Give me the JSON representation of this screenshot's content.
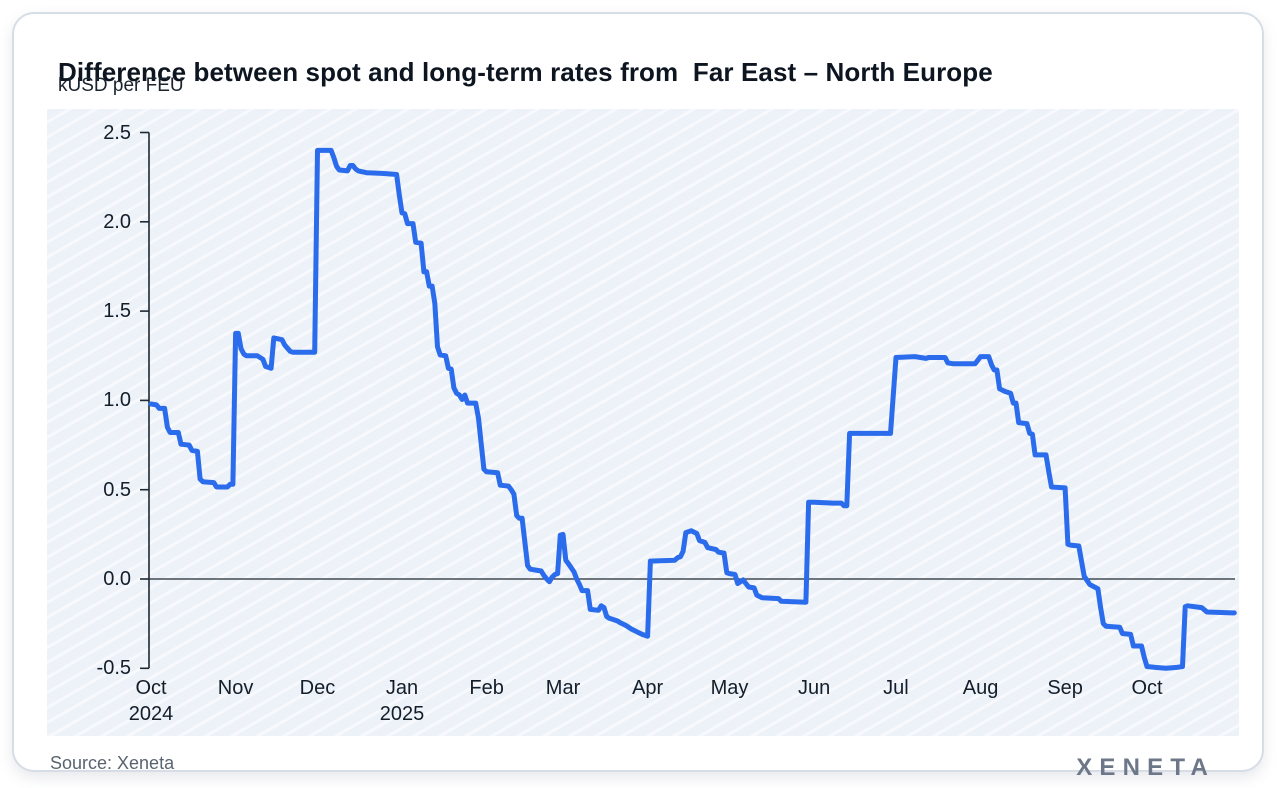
{
  "header": {
    "title": "Difference between spot and long-term rates from  Far East – North Europe",
    "subtitle": "kUSD per FEU"
  },
  "footer": {
    "source": "Source: Xeneta",
    "logo": "XENETA"
  },
  "chart_data": {
    "type": "line",
    "title": "Difference between spot and long-term rates from Far East – North Europe",
    "xlabel": "",
    "ylabel": "kUSD per FEU",
    "ylim": [
      -0.5,
      2.5
    ],
    "grid": false,
    "legend": false,
    "zero_line": true,
    "line_color": "#2a6ceb",
    "axis_color": "#1f2933",
    "panel_color": "#edf1f8",
    "x_start": "2024-10-01",
    "x_end": "2025-11-02",
    "y_ticks": [
      {
        "v": 2.5,
        "label": "2.5"
      },
      {
        "v": 2.0,
        "label": "2.0"
      },
      {
        "v": 1.5,
        "label": "1.5"
      },
      {
        "v": 1.0,
        "label": "1.0"
      },
      {
        "v": 0.5,
        "label": "0.5"
      },
      {
        "v": 0.0,
        "label": "0.0"
      },
      {
        "v": -0.5,
        "label": "-0.5"
      }
    ],
    "x_ticks": [
      {
        "date": "2024-10-01",
        "label": "Oct",
        "sub": "2024"
      },
      {
        "date": "2024-11-01",
        "label": "Nov"
      },
      {
        "date": "2024-12-01",
        "label": "Dec"
      },
      {
        "date": "2025-01-01",
        "label": "Jan",
        "sub": "2025"
      },
      {
        "date": "2025-02-01",
        "label": "Feb"
      },
      {
        "date": "2025-03-01",
        "label": "Mar"
      },
      {
        "date": "2025-04-01",
        "label": "Apr"
      },
      {
        "date": "2025-05-01",
        "label": "May"
      },
      {
        "date": "2025-06-01",
        "label": "Jun"
      },
      {
        "date": "2025-07-01",
        "label": "Jul"
      },
      {
        "date": "2025-08-01",
        "label": "Aug"
      },
      {
        "date": "2025-09-01",
        "label": "Sep"
      },
      {
        "date": "2025-10-01",
        "label": "Oct"
      }
    ],
    "series": [
      {
        "points": [
          [
            "2024-10-01",
            0.98
          ],
          [
            "2024-10-03",
            0.975
          ],
          [
            "2024-10-04",
            0.955
          ],
          [
            "2024-10-06",
            0.955
          ],
          [
            "2024-10-07",
            0.85
          ],
          [
            "2024-10-08",
            0.82
          ],
          [
            "2024-10-11",
            0.82
          ],
          [
            "2024-10-12",
            0.755
          ],
          [
            "2024-10-15",
            0.75
          ],
          [
            "2024-10-16",
            0.72
          ],
          [
            "2024-10-18",
            0.715
          ],
          [
            "2024-10-19",
            0.56
          ],
          [
            "2024-10-20",
            0.545
          ],
          [
            "2024-10-24",
            0.54
          ],
          [
            "2024-10-25",
            0.515
          ],
          [
            "2024-10-29",
            0.515
          ],
          [
            "2024-10-30",
            0.53
          ],
          [
            "2024-10-31",
            0.53
          ],
          [
            "2024-11-01",
            1.375
          ],
          [
            "2024-11-02",
            1.375
          ],
          [
            "2024-11-03",
            1.29
          ],
          [
            "2024-11-04",
            1.26
          ],
          [
            "2024-11-05",
            1.25
          ],
          [
            "2024-11-09",
            1.25
          ],
          [
            "2024-11-11",
            1.23
          ],
          [
            "2024-11-12",
            1.19
          ],
          [
            "2024-11-14",
            1.18
          ],
          [
            "2024-11-15",
            1.35
          ],
          [
            "2024-11-18",
            1.34
          ],
          [
            "2024-11-19",
            1.31
          ],
          [
            "2024-11-21",
            1.275
          ],
          [
            "2024-11-22",
            1.27
          ],
          [
            "2024-11-30",
            1.27
          ],
          [
            "2024-12-01",
            2.4
          ],
          [
            "2024-12-06",
            2.4
          ],
          [
            "2024-12-07",
            2.36
          ],
          [
            "2024-12-08",
            2.31
          ],
          [
            "2024-12-09",
            2.29
          ],
          [
            "2024-12-12",
            2.285
          ],
          [
            "2024-12-13",
            2.315
          ],
          [
            "2024-12-14",
            2.315
          ],
          [
            "2024-12-15",
            2.295
          ],
          [
            "2024-12-16",
            2.285
          ],
          [
            "2024-12-19",
            2.275
          ],
          [
            "2024-12-26",
            2.27
          ],
          [
            "2024-12-30",
            2.265
          ],
          [
            "2024-12-31",
            2.15
          ],
          [
            "2025-01-01",
            2.05
          ],
          [
            "2025-01-02",
            2.045
          ],
          [
            "2025-01-03",
            1.99
          ],
          [
            "2025-01-05",
            1.99
          ],
          [
            "2025-01-06",
            1.885
          ],
          [
            "2025-01-08",
            1.88
          ],
          [
            "2025-01-09",
            1.72
          ],
          [
            "2025-01-10",
            1.72
          ],
          [
            "2025-01-11",
            1.64
          ],
          [
            "2025-01-12",
            1.64
          ],
          [
            "2025-01-13",
            1.545
          ],
          [
            "2025-01-14",
            1.3
          ],
          [
            "2025-01-15",
            1.255
          ],
          [
            "2025-01-17",
            1.25
          ],
          [
            "2025-01-18",
            1.18
          ],
          [
            "2025-01-19",
            1.175
          ],
          [
            "2025-01-20",
            1.07
          ],
          [
            "2025-01-21",
            1.04
          ],
          [
            "2025-01-22",
            1.03
          ],
          [
            "2025-01-23",
            1.005
          ],
          [
            "2025-01-24",
            1.03
          ],
          [
            "2025-01-25",
            0.985
          ],
          [
            "2025-01-28",
            0.985
          ],
          [
            "2025-01-29",
            0.9
          ],
          [
            "2025-01-31",
            0.615
          ],
          [
            "2025-02-01",
            0.6
          ],
          [
            "2025-02-05",
            0.595
          ],
          [
            "2025-02-06",
            0.525
          ],
          [
            "2025-02-09",
            0.52
          ],
          [
            "2025-02-10",
            0.5
          ],
          [
            "2025-02-11",
            0.475
          ],
          [
            "2025-02-12",
            0.355
          ],
          [
            "2025-02-13",
            0.34
          ],
          [
            "2025-02-14",
            0.34
          ],
          [
            "2025-02-16",
            0.075
          ],
          [
            "2025-02-17",
            0.055
          ],
          [
            "2025-02-19",
            0.05
          ],
          [
            "2025-02-21",
            0.045
          ],
          [
            "2025-02-22",
            0.02
          ],
          [
            "2025-02-23",
            0.0
          ],
          [
            "2025-02-24",
            -0.015
          ],
          [
            "2025-02-25",
            0.01
          ],
          [
            "2025-02-26",
            0.025
          ],
          [
            "2025-02-27",
            0.03
          ],
          [
            "2025-02-28",
            0.245
          ],
          [
            "2025-03-01",
            0.25
          ],
          [
            "2025-03-02",
            0.105
          ],
          [
            "2025-03-03",
            0.085
          ],
          [
            "2025-03-05",
            0.04
          ],
          [
            "2025-03-06",
            0.0
          ],
          [
            "2025-03-07",
            -0.03
          ],
          [
            "2025-03-08",
            -0.065
          ],
          [
            "2025-03-10",
            -0.065
          ],
          [
            "2025-03-11",
            -0.17
          ],
          [
            "2025-03-14",
            -0.175
          ],
          [
            "2025-03-15",
            -0.15
          ],
          [
            "2025-03-16",
            -0.16
          ],
          [
            "2025-03-17",
            -0.21
          ],
          [
            "2025-03-18",
            -0.22
          ],
          [
            "2025-03-21",
            -0.235
          ],
          [
            "2025-03-22",
            -0.245
          ],
          [
            "2025-03-24",
            -0.26
          ],
          [
            "2025-03-26",
            -0.28
          ],
          [
            "2025-03-28",
            -0.295
          ],
          [
            "2025-03-30",
            -0.31
          ],
          [
            "2025-03-31",
            -0.315
          ],
          [
            "2025-04-01",
            -0.32
          ],
          [
            "2025-04-02",
            0.1
          ],
          [
            "2025-04-11",
            0.105
          ],
          [
            "2025-04-12",
            0.12
          ],
          [
            "2025-04-13",
            0.125
          ],
          [
            "2025-04-14",
            0.155
          ],
          [
            "2025-04-15",
            0.26
          ],
          [
            "2025-04-17",
            0.27
          ],
          [
            "2025-04-19",
            0.255
          ],
          [
            "2025-04-20",
            0.215
          ],
          [
            "2025-04-22",
            0.205
          ],
          [
            "2025-04-23",
            0.175
          ],
          [
            "2025-04-26",
            0.165
          ],
          [
            "2025-04-27",
            0.15
          ],
          [
            "2025-04-29",
            0.145
          ],
          [
            "2025-04-30",
            0.035
          ],
          [
            "2025-05-01",
            0.03
          ],
          [
            "2025-05-03",
            0.025
          ],
          [
            "2025-05-04",
            -0.025
          ],
          [
            "2025-05-06",
            -0.005
          ],
          [
            "2025-05-08",
            -0.045
          ],
          [
            "2025-05-10",
            -0.05
          ],
          [
            "2025-05-11",
            -0.09
          ],
          [
            "2025-05-13",
            -0.105
          ],
          [
            "2025-05-19",
            -0.11
          ],
          [
            "2025-05-20",
            -0.125
          ],
          [
            "2025-05-29",
            -0.13
          ],
          [
            "2025-05-30",
            0.43
          ],
          [
            "2025-06-01",
            0.43
          ],
          [
            "2025-06-08",
            0.425
          ],
          [
            "2025-06-11",
            0.425
          ],
          [
            "2025-06-12",
            0.41
          ],
          [
            "2025-06-13",
            0.41
          ],
          [
            "2025-06-14",
            0.815
          ],
          [
            "2025-06-29",
            0.815
          ],
          [
            "2025-07-01",
            1.24
          ],
          [
            "2025-07-08",
            1.245
          ],
          [
            "2025-07-12",
            1.235
          ],
          [
            "2025-07-13",
            1.24
          ],
          [
            "2025-07-19",
            1.24
          ],
          [
            "2025-07-20",
            1.21
          ],
          [
            "2025-07-22",
            1.205
          ],
          [
            "2025-07-30",
            1.205
          ],
          [
            "2025-07-31",
            1.225
          ],
          [
            "2025-08-01",
            1.245
          ],
          [
            "2025-08-04",
            1.245
          ],
          [
            "2025-08-05",
            1.2
          ],
          [
            "2025-08-06",
            1.17
          ],
          [
            "2025-08-07",
            1.17
          ],
          [
            "2025-08-08",
            1.065
          ],
          [
            "2025-08-10",
            1.05
          ],
          [
            "2025-08-12",
            1.04
          ],
          [
            "2025-08-13",
            0.985
          ],
          [
            "2025-08-14",
            0.985
          ],
          [
            "2025-08-15",
            0.875
          ],
          [
            "2025-08-18",
            0.87
          ],
          [
            "2025-08-19",
            0.815
          ],
          [
            "2025-08-20",
            0.81
          ],
          [
            "2025-08-21",
            0.695
          ],
          [
            "2025-08-25",
            0.695
          ],
          [
            "2025-08-26",
            0.6
          ],
          [
            "2025-08-27",
            0.515
          ],
          [
            "2025-09-01",
            0.51
          ],
          [
            "2025-09-02",
            0.195
          ],
          [
            "2025-09-03",
            0.19
          ],
          [
            "2025-09-06",
            0.185
          ],
          [
            "2025-09-08",
            0.015
          ],
          [
            "2025-09-10",
            -0.03
          ],
          [
            "2025-09-13",
            -0.055
          ],
          [
            "2025-09-14",
            -0.16
          ],
          [
            "2025-09-15",
            -0.25
          ],
          [
            "2025-09-16",
            -0.265
          ],
          [
            "2025-09-21",
            -0.27
          ],
          [
            "2025-09-22",
            -0.305
          ],
          [
            "2025-09-25",
            -0.31
          ],
          [
            "2025-09-26",
            -0.375
          ],
          [
            "2025-09-29",
            -0.375
          ],
          [
            "2025-09-30",
            -0.44
          ],
          [
            "2025-10-01",
            -0.49
          ],
          [
            "2025-10-04",
            -0.495
          ],
          [
            "2025-10-08",
            -0.5
          ],
          [
            "2025-10-12",
            -0.495
          ],
          [
            "2025-10-14",
            -0.49
          ],
          [
            "2025-10-15",
            -0.155
          ],
          [
            "2025-10-16",
            -0.15
          ],
          [
            "2025-10-21",
            -0.16
          ],
          [
            "2025-10-23",
            -0.185
          ],
          [
            "2025-11-01",
            -0.19
          ],
          [
            "2025-11-02",
            -0.19
          ]
        ]
      }
    ]
  }
}
